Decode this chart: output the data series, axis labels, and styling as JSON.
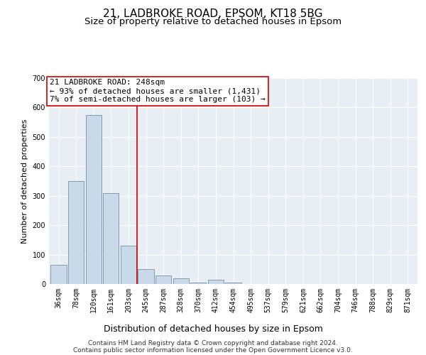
{
  "title_line1": "21, LADBROKE ROAD, EPSOM, KT18 5BG",
  "title_line2": "Size of property relative to detached houses in Epsom",
  "xlabel": "Distribution of detached houses by size in Epsom",
  "ylabel": "Number of detached properties",
  "bar_values": [
    65,
    350,
    575,
    310,
    130,
    50,
    30,
    20,
    5,
    15,
    5,
    0,
    0,
    0,
    0,
    0,
    0,
    0,
    0,
    0,
    0
  ],
  "bar_labels": [
    "36sqm",
    "78sqm",
    "120sqm",
    "161sqm",
    "203sqm",
    "245sqm",
    "287sqm",
    "328sqm",
    "370sqm",
    "412sqm",
    "454sqm",
    "495sqm",
    "537sqm",
    "579sqm",
    "621sqm",
    "662sqm",
    "704sqm",
    "746sqm",
    "788sqm",
    "829sqm",
    "871sqm"
  ],
  "bar_color": "#c9d9ea",
  "bar_edge_color": "#7090b0",
  "vline_x": 4.5,
  "vline_color": "#cc0000",
  "annotation_text": "21 LADBROKE ROAD: 248sqm\n← 93% of detached houses are smaller (1,431)\n7% of semi-detached houses are larger (103) →",
  "annotation_box_color": "#ffffff",
  "annotation_box_edge": "#cc0000",
  "ylim": [
    0,
    700
  ],
  "yticks": [
    0,
    100,
    200,
    300,
    400,
    500,
    600,
    700
  ],
  "background_color": "#e8eef4",
  "grid_color": "#ffffff",
  "footer_line1": "Contains HM Land Registry data © Crown copyright and database right 2024.",
  "footer_line2": "Contains public sector information licensed under the Open Government Licence v3.0.",
  "title_fontsize": 11,
  "subtitle_fontsize": 9.5,
  "ylabel_fontsize": 8,
  "xlabel_fontsize": 9,
  "tick_fontsize": 7,
  "annotation_fontsize": 8,
  "footer_fontsize": 6.5
}
